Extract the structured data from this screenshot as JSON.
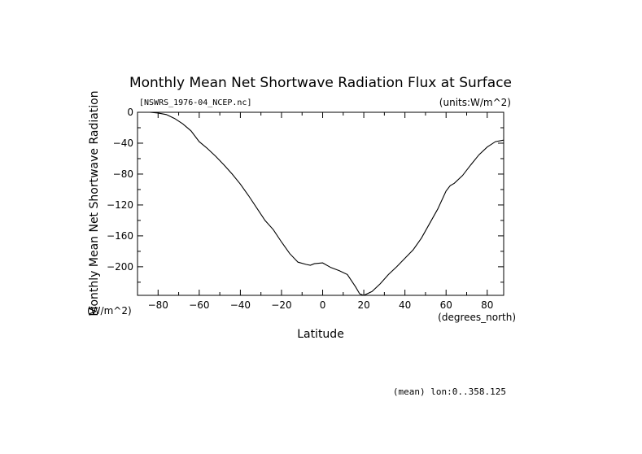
{
  "chart_data": {
    "type": "line",
    "title": "Monthly Mean Net Shortwave Radiation Flux at Surface",
    "file_label": "[NSWRS_1976-04_NCEP.nc]",
    "units_label": "(units:W/m^2)",
    "ylabel": "Monthly Mean Net Shortwave Radiation",
    "yunits": "(W/m^2)",
    "xlabel": "Latitude",
    "xunits": "(degrees_north)",
    "footnote": "(mean) lon:0..358.125",
    "xlim": [
      -90,
      88
    ],
    "ylim": [
      -237,
      0
    ],
    "xticks": [
      -80,
      -60,
      -40,
      -20,
      0,
      20,
      40,
      60,
      80
    ],
    "yticks": [
      0,
      -40,
      -80,
      -120,
      -160,
      -200
    ],
    "grid": false,
    "series": [
      {
        "x": [
          -88,
          -84,
          -80,
          -76,
          -72,
          -68,
          -64,
          -60,
          -56,
          -52,
          -48,
          -44,
          -40,
          -36,
          -32,
          -28,
          -24,
          -20,
          -16,
          -12,
          -8,
          -6,
          -4,
          0,
          4,
          8,
          12,
          16,
          18,
          20,
          24,
          28,
          32,
          36,
          40,
          44,
          48,
          52,
          56,
          60,
          62,
          64,
          68,
          72,
          76,
          80,
          84,
          88
        ],
        "y": [
          0,
          0,
          -1,
          -3,
          -8,
          -15,
          -24,
          -38,
          -47,
          -57,
          -68,
          -80,
          -93,
          -108,
          -124,
          -140,
          -152,
          -168,
          -183,
          -194,
          -197,
          -198,
          -196,
          -195,
          -201,
          -205,
          -210,
          -226,
          -235,
          -237,
          -232,
          -222,
          -210,
          -200,
          -189,
          -178,
          -163,
          -144,
          -125,
          -102,
          -95,
          -92,
          -82,
          -68,
          -55,
          -45,
          -38,
          -36
        ]
      }
    ]
  }
}
